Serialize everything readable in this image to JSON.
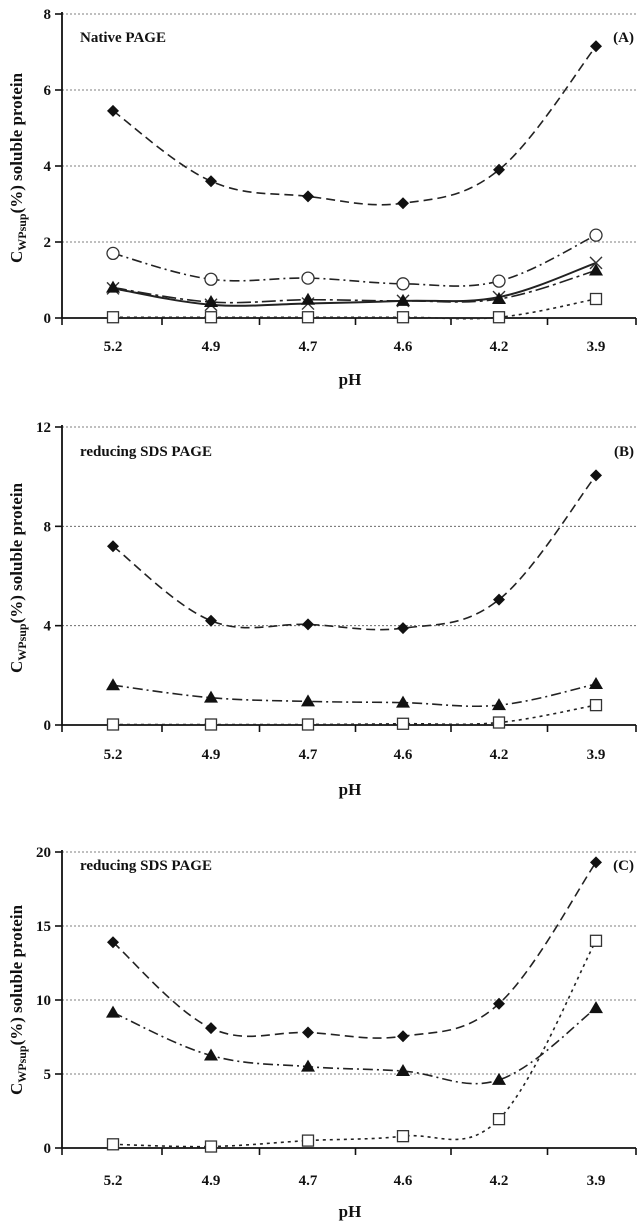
{
  "chart_data": [
    {
      "type": "line",
      "panel_label": "(A)",
      "title": "Native PAGE",
      "xlabel": "pH",
      "ylabel": "C_WPsup(%) soluble protein",
      "categories": [
        "5.2",
        "4.9",
        "4.7",
        "4.6",
        "4.2",
        "3.9"
      ],
      "ylim": [
        0,
        8
      ],
      "yticks": [
        0,
        2,
        4,
        6,
        8
      ],
      "grid": "horizontal dotted",
      "series": [
        {
          "marker": "diamond-filled",
          "line": "dashed",
          "values": [
            5.45,
            3.6,
            3.2,
            3.02,
            3.9,
            7.15
          ]
        },
        {
          "marker": "circle-open",
          "line": "dash-dot",
          "values": [
            1.7,
            1.02,
            1.05,
            0.9,
            0.97,
            2.18
          ]
        },
        {
          "marker": "cross",
          "line": "solid",
          "values": [
            0.78,
            0.35,
            0.38,
            0.45,
            0.55,
            1.45
          ]
        },
        {
          "marker": "triangle-filled",
          "line": "long-dash-dot",
          "values": [
            0.8,
            0.42,
            0.48,
            0.45,
            0.5,
            1.25
          ]
        },
        {
          "marker": "square-open",
          "line": "dotted",
          "values": [
            0.02,
            0.02,
            0.02,
            0.02,
            0.02,
            0.5
          ]
        }
      ]
    },
    {
      "type": "line",
      "panel_label": "(B)",
      "title": "reducing SDS PAGE",
      "xlabel": "pH",
      "ylabel": "C_WPsup(%) soluble protein",
      "categories": [
        "5.2",
        "4.9",
        "4.7",
        "4.6",
        "4.2",
        "3.9"
      ],
      "ylim": [
        0,
        12
      ],
      "yticks": [
        0,
        4,
        8,
        12
      ],
      "grid": "horizontal dotted",
      "series": [
        {
          "marker": "diamond-filled",
          "line": "dashed",
          "values": [
            7.2,
            4.2,
            4.05,
            3.9,
            5.05,
            10.05
          ]
        },
        {
          "marker": "triangle-filled",
          "line": "dash-dot",
          "values": [
            1.6,
            1.1,
            0.95,
            0.9,
            0.8,
            1.65
          ]
        },
        {
          "marker": "square-open",
          "line": "dotted",
          "values": [
            0.02,
            0.02,
            0.02,
            0.05,
            0.1,
            0.8
          ]
        }
      ]
    },
    {
      "type": "line",
      "panel_label": "(C)",
      "title": "reducing SDS PAGE",
      "xlabel": "pH",
      "ylabel": "C_WPsup(%) soluble protein",
      "categories": [
        "5.2",
        "4.9",
        "4.7",
        "4.6",
        "4.2",
        "3.9"
      ],
      "ylim": [
        0,
        20
      ],
      "yticks": [
        0,
        5,
        10,
        15,
        20
      ],
      "grid": "horizontal dotted",
      "series": [
        {
          "marker": "diamond-filled",
          "line": "dashed",
          "values": [
            13.9,
            8.1,
            7.8,
            7.55,
            9.75,
            19.3
          ]
        },
        {
          "marker": "triangle-filled",
          "line": "dash-dot",
          "values": [
            9.15,
            6.25,
            5.5,
            5.2,
            4.6,
            9.45
          ]
        },
        {
          "marker": "square-open",
          "line": "dotted",
          "values": [
            0.25,
            0.1,
            0.5,
            0.8,
            1.95,
            14.0
          ]
        }
      ]
    }
  ],
  "ylabel_parts": {
    "c": "C",
    "sub": "WPsup",
    "rest": "(%) soluble protein"
  }
}
